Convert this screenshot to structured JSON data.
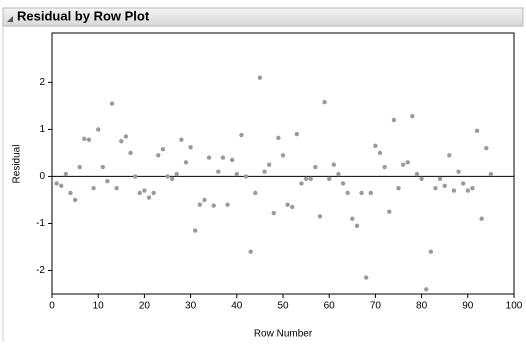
{
  "chart_data": {
    "type": "scatter",
    "title": "Residual by Row Plot",
    "xlabel": "Row Number",
    "ylabel": "Residual",
    "x": [
      1,
      2,
      3,
      4,
      5,
      6,
      7,
      8,
      9,
      10,
      11,
      12,
      13,
      14,
      15,
      16,
      17,
      18,
      19,
      20,
      21,
      22,
      23,
      24,
      25,
      26,
      27,
      28,
      29,
      30,
      31,
      32,
      33,
      34,
      35,
      36,
      37,
      38,
      39,
      40,
      41,
      42,
      43,
      44,
      45,
      46,
      47,
      48,
      49,
      50,
      51,
      52,
      53,
      54,
      55,
      56,
      57,
      58,
      59,
      60,
      61,
      62,
      63,
      64,
      65,
      66,
      67,
      68,
      69,
      70,
      71,
      72,
      73,
      74,
      75,
      76,
      77,
      78,
      79,
      80,
      81,
      82,
      83,
      84,
      85,
      86,
      87,
      88,
      89,
      90,
      91,
      92,
      93,
      94,
      95
    ],
    "values": [
      -0.15,
      -0.2,
      0.05,
      -0.35,
      -0.5,
      0.2,
      0.8,
      0.78,
      -0.25,
      1.0,
      0.2,
      -0.1,
      1.55,
      -0.25,
      0.75,
      0.85,
      0.5,
      0.0,
      -0.35,
      -0.3,
      -0.45,
      -0.35,
      0.45,
      0.58,
      0.0,
      -0.05,
      0.05,
      0.78,
      0.3,
      0.62,
      -1.15,
      -0.6,
      -0.5,
      0.4,
      -0.62,
      0.1,
      0.4,
      -0.6,
      0.35,
      0.05,
      0.88,
      0.0,
      -1.6,
      -0.35,
      2.1,
      0.1,
      0.25,
      -0.78,
      0.82,
      0.45,
      -0.6,
      -0.65,
      0.9,
      -0.15,
      -0.05,
      -0.05,
      0.2,
      -0.85,
      1.58,
      -0.05,
      0.25,
      0.05,
      -0.15,
      -0.35,
      -0.9,
      -1.05,
      -0.35,
      -2.15,
      -0.35,
      0.65,
      0.5,
      0.2,
      -0.75,
      1.2,
      -0.25,
      0.25,
      0.3,
      1.28,
      0.05,
      -0.05,
      -2.4,
      -1.6,
      -0.25,
      -0.05,
      -0.2,
      0.45,
      -0.3,
      0.1,
      -0.15,
      -0.3,
      -0.25,
      0.97,
      -0.9,
      0.6,
      0.05
    ],
    "color": "#9a9a9a",
    "reference_line": 0,
    "xlim": [
      0,
      100
    ],
    "xticks": [
      0,
      10,
      20,
      30,
      40,
      50,
      60,
      70,
      80,
      90,
      100
    ],
    "ylim": [
      -2.5,
      3.05
    ],
    "yticks": [
      -2,
      -1,
      0,
      1,
      2
    ]
  }
}
